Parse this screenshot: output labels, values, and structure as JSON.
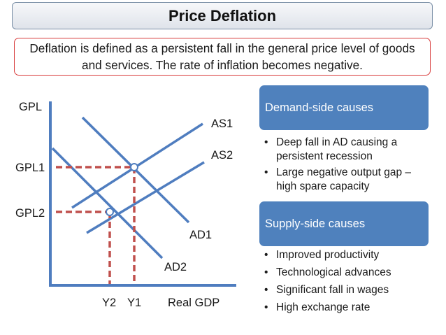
{
  "title": "Price Deflation",
  "definition": "Deflation is defined as a persistent fall in the general price level of goods and services. The rate of inflation becomes negative.",
  "diagram": {
    "y_axis_label": "GPL",
    "x_axis_label": "Real GDP",
    "curves": {
      "as1": "AS1",
      "as2": "AS2",
      "ad1": "AD1",
      "ad2": "AD2"
    },
    "price_levels": {
      "gpl1": "GPL1",
      "gpl2": "GPL2"
    },
    "outputs": {
      "y2": "Y2",
      "y1": "Y1"
    },
    "colors": {
      "curve": "#4f7dbf",
      "guide": "#c0504d",
      "axis": "#4f7dbf"
    }
  },
  "demand_side": {
    "header": "Demand-side causes",
    "bullets": [
      "Deep fall in AD causing a persistent recession",
      "Large negative output gap – high spare capacity"
    ]
  },
  "supply_side": {
    "header": "Supply-side causes",
    "bullets": [
      "Improved productivity",
      "Technological advances",
      "Significant fall in wages",
      "High exchange rate"
    ]
  }
}
